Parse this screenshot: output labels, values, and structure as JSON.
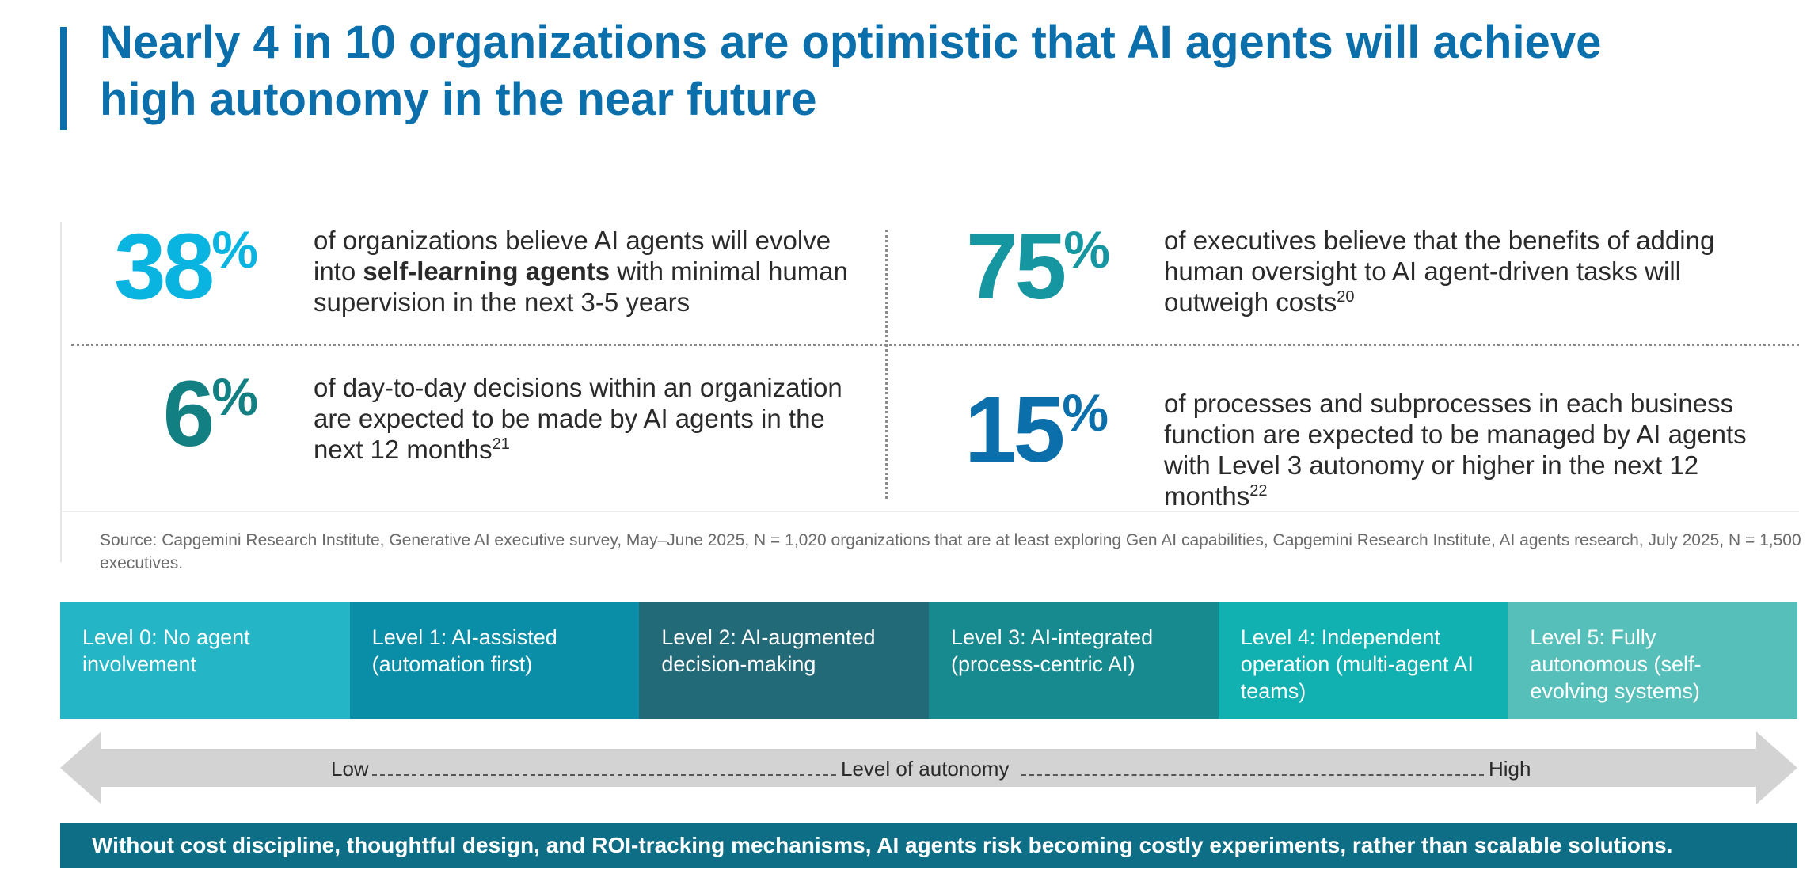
{
  "title": {
    "line1": "Nearly 4 in 10 organizations are optimistic that AI agents will achieve",
    "line2": "high autonomy in the near future"
  },
  "stats": {
    "s38": {
      "number": "38",
      "symbol": "%",
      "color": "#0ab4e0",
      "text_pre": "of organizations believe AI agents will evolve into ",
      "text_bold": "self-learning agents",
      "text_post": " with minimal human supervision in the next 3-5 years"
    },
    "s75": {
      "number": "75",
      "symbol": "%",
      "color": "#1696a0",
      "text": "of executives believe that the benefits of adding human oversight to AI agent-driven tasks will outweigh costs",
      "footnote": "20"
    },
    "s6": {
      "number": "6",
      "symbol": "%",
      "color": "#127f83",
      "text": "of day-to-day decisions within an organization are expected to be made by AI agents in the next 12 months",
      "footnote": "21"
    },
    "s15": {
      "number": "15",
      "symbol": "%",
      "color": "#0a6fab",
      "text": "of processes and subprocesses in each business function are expected to be managed by AI agents with Level 3 autonomy or higher in the next 12 months",
      "footnote": "22"
    }
  },
  "source": "Source: Capgemini Research Institute, Generative AI executive survey, May–June 2025, N = 1,020 organizations that are at least exploring Gen AI capabilities, Capgemini Research Institute, AI agents research, July 2025, N = 1,500 executives.",
  "levels": [
    {
      "label": "Level 0: No agent involvement",
      "color": "#24b5c6"
    },
    {
      "label": "Level 1: AI-assisted (automation first)",
      "color": "#0a8ea7"
    },
    {
      "label": "Level 2: AI-augmented decision-making",
      "color": "#236a78"
    },
    {
      "label": "Level 3: AI-integrated (process-centric AI)",
      "color": "#178a90"
    },
    {
      "label": "Level 4: Independent operation (multi-agent AI teams)",
      "color": "#12b1b1"
    },
    {
      "label": "Level 5: Fully autonomous (self-evolving systems)",
      "color": "#56bfb9"
    }
  ],
  "autonomy_axis": {
    "low": "Low",
    "middle": "Level of autonomy",
    "high": "High"
  },
  "banner": "Without cost discipline, thoughtful design, and ROI-tracking mechanisms, AI agents risk becoming costly experiments, rather than scalable solutions.",
  "colors": {
    "title": "#0a6fab",
    "arrow": "#d3d3d3",
    "banner": "#0e6e86"
  }
}
